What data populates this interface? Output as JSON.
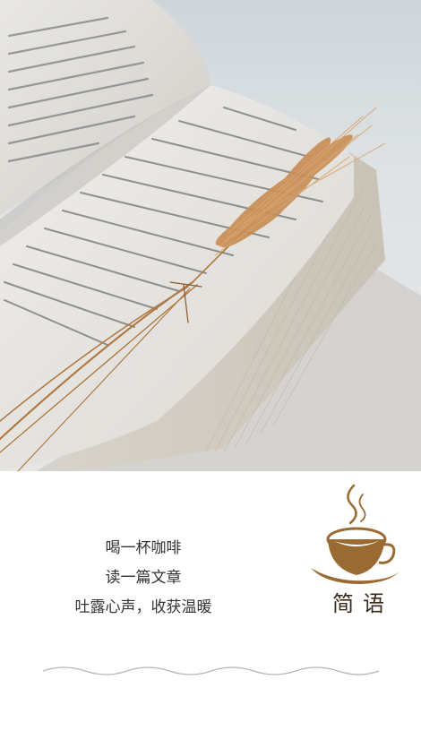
{
  "hero": {
    "image": "open-book-with-dried-wheat-photo"
  },
  "quote": {
    "lines": [
      "喝一杯咖啡",
      "读一篇文章",
      "吐露心声，收获温暖"
    ]
  },
  "logo": {
    "text": "简语",
    "icon": "coffee-cup-icon",
    "color": "#9a6a33"
  },
  "divider": {
    "icon": "wavy-line-icon",
    "color": "#b5b5b5"
  }
}
